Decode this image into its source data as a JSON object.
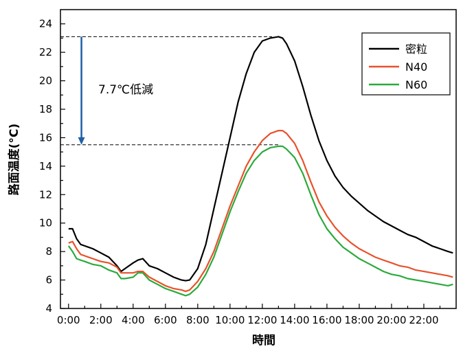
{
  "chart_data": {
    "type": "line",
    "xlabel": "時間",
    "ylabel": "路面温度(°C)",
    "xlim": [
      -0.5,
      24
    ],
    "ylim": [
      4,
      25
    ],
    "x_ticks": [
      0,
      2,
      4,
      6,
      8,
      10,
      12,
      14,
      16,
      18,
      20,
      22
    ],
    "x_tick_labels": [
      "0:00",
      "2:00",
      "4:00",
      "6:00",
      "8:00",
      "10:00",
      "12:00",
      "14:00",
      "16:00",
      "18:00",
      "20:00",
      "22:00"
    ],
    "y_ticks": [
      4,
      6,
      8,
      10,
      12,
      14,
      16,
      18,
      20,
      22,
      24
    ],
    "y_tick_labels": [
      "4",
      "6",
      "8",
      "10",
      "12",
      "14",
      "16",
      "18",
      "20",
      "22",
      "24"
    ],
    "grid": false,
    "legend_position": "top-right",
    "series": [
      {
        "name": "密粒",
        "color": "#000000",
        "x": [
          0,
          0.25,
          0.5,
          0.75,
          1,
          1.5,
          2,
          2.5,
          3,
          3.25,
          3.5,
          4,
          4.3,
          4.6,
          5,
          5.5,
          6,
          6.5,
          7,
          7.25,
          7.5,
          8,
          8.5,
          9,
          9.5,
          10,
          10.5,
          11,
          11.5,
          12,
          12.5,
          13,
          13.25,
          13.5,
          14,
          14.5,
          15,
          15.5,
          16,
          16.5,
          17,
          17.5,
          18,
          18.5,
          19,
          19.5,
          20,
          20.5,
          21,
          21.5,
          22,
          22.5,
          23,
          23.5,
          23.8
        ],
        "y": [
          9.6,
          9.6,
          8.9,
          8.5,
          8.4,
          8.2,
          7.9,
          7.6,
          7.0,
          6.6,
          6.8,
          7.2,
          7.4,
          7.5,
          7.0,
          6.8,
          6.5,
          6.2,
          6.0,
          5.95,
          6.0,
          6.8,
          8.5,
          11.0,
          13.5,
          16.0,
          18.5,
          20.5,
          22.0,
          22.8,
          23.0,
          23.1,
          23.0,
          22.6,
          21.4,
          19.6,
          17.6,
          15.8,
          14.4,
          13.3,
          12.5,
          11.9,
          11.4,
          10.9,
          10.5,
          10.1,
          9.8,
          9.5,
          9.2,
          9.0,
          8.7,
          8.4,
          8.2,
          8.0,
          7.9
        ]
      },
      {
        "name": "N40",
        "color": "#e8512a",
        "x": [
          0,
          0.25,
          0.5,
          0.75,
          1,
          1.5,
          2,
          2.5,
          3,
          3.25,
          3.5,
          4,
          4.3,
          4.6,
          5,
          5.5,
          6,
          6.5,
          7,
          7.25,
          7.5,
          8,
          8.5,
          9,
          9.5,
          10,
          10.5,
          11,
          11.5,
          12,
          12.5,
          13,
          13.25,
          13.5,
          14,
          14.5,
          15,
          15.5,
          16,
          16.5,
          17,
          17.5,
          18,
          18.5,
          19,
          19.5,
          20,
          20.5,
          21,
          21.5,
          22,
          22.5,
          23,
          23.5,
          23.8
        ],
        "y": [
          8.6,
          8.7,
          8.2,
          7.8,
          7.7,
          7.5,
          7.3,
          7.2,
          6.9,
          6.5,
          6.5,
          6.5,
          6.6,
          6.6,
          6.2,
          5.9,
          5.6,
          5.4,
          5.3,
          5.2,
          5.3,
          5.9,
          6.8,
          8.0,
          9.6,
          11.2,
          12.6,
          14.0,
          15.0,
          15.8,
          16.3,
          16.5,
          16.5,
          16.3,
          15.6,
          14.4,
          12.9,
          11.5,
          10.5,
          9.7,
          9.1,
          8.6,
          8.2,
          7.9,
          7.6,
          7.4,
          7.2,
          7.0,
          6.9,
          6.7,
          6.6,
          6.5,
          6.4,
          6.3,
          6.2
        ]
      },
      {
        "name": "N60",
        "color": "#2aaa3a",
        "x": [
          0,
          0.25,
          0.5,
          0.75,
          1,
          1.5,
          2,
          2.5,
          3,
          3.25,
          3.5,
          4,
          4.3,
          4.6,
          5,
          5.5,
          6,
          6.5,
          7,
          7.25,
          7.5,
          8,
          8.5,
          9,
          9.5,
          10,
          10.5,
          11,
          11.5,
          12,
          12.5,
          13,
          13.25,
          13.5,
          14,
          14.5,
          15,
          15.5,
          16,
          16.5,
          17,
          17.5,
          18,
          18.5,
          19,
          19.5,
          20,
          20.5,
          21,
          21.5,
          22,
          22.5,
          23,
          23.5,
          23.8
        ],
        "y": [
          8.4,
          8.0,
          7.5,
          7.4,
          7.3,
          7.1,
          7.0,
          6.7,
          6.5,
          6.1,
          6.1,
          6.2,
          6.5,
          6.5,
          6.0,
          5.7,
          5.4,
          5.2,
          5.0,
          4.9,
          5.0,
          5.5,
          6.4,
          7.6,
          9.2,
          10.8,
          12.2,
          13.5,
          14.4,
          15.0,
          15.3,
          15.4,
          15.4,
          15.2,
          14.6,
          13.5,
          12.0,
          10.6,
          9.6,
          8.9,
          8.3,
          7.9,
          7.5,
          7.2,
          6.9,
          6.6,
          6.4,
          6.3,
          6.1,
          6.0,
          5.9,
          5.8,
          5.7,
          5.6,
          5.7
        ]
      }
    ],
    "annotation": {
      "text": "7.7℃低減",
      "from_y": 23.1,
      "to_y": 15.5,
      "arrow_x": 0.8,
      "ref_line_top_end_x": 12.6,
      "ref_line_bottom_end_x": 13.0,
      "arrow_color": "#1f5fa8"
    }
  }
}
